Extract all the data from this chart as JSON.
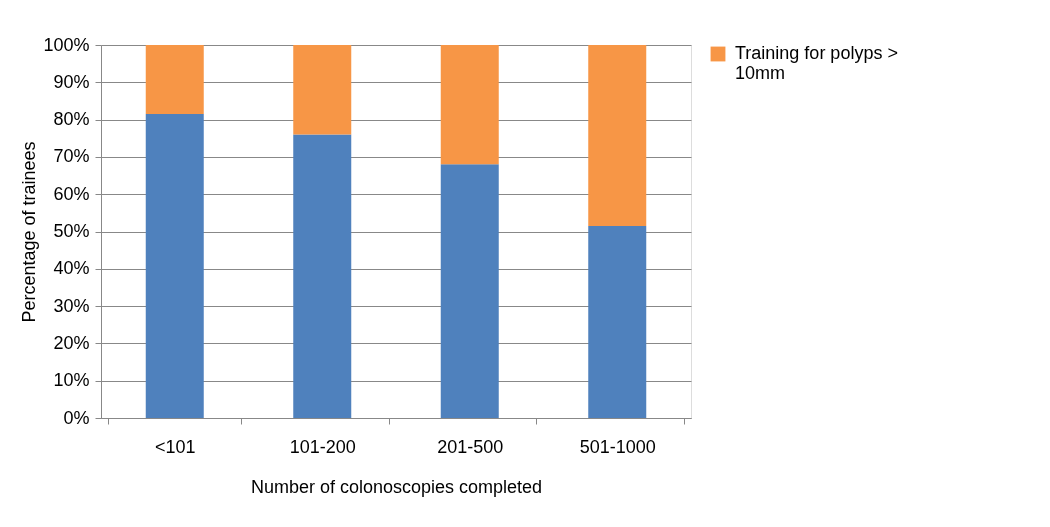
{
  "chart_data": {
    "type": "bar",
    "stacked": true,
    "xlabel": "Number of colonoscopies completed",
    "ylabel": "Percentage of trainees",
    "categories": [
      "<101",
      "101-200",
      "201-500",
      "501-1000"
    ],
    "series": [
      {
        "color": "#4f81bd",
        "values": [
          81.5,
          76,
          68,
          51.5
        ]
      },
      {
        "name": "Training for polyps > 10mm",
        "color": "#f79646",
        "values": [
          18.5,
          24,
          32,
          48.5
        ]
      }
    ],
    "ylim": [
      0,
      100
    ],
    "yticks": [
      {
        "value": 0,
        "label": "0%"
      },
      {
        "value": 10,
        "label": "10%"
      },
      {
        "value": 20,
        "label": "20%"
      },
      {
        "value": 30,
        "label": "30%"
      },
      {
        "value": 40,
        "label": "40%"
      },
      {
        "value": 50,
        "label": "50%"
      },
      {
        "value": 60,
        "label": "60%"
      },
      {
        "value": 70,
        "label": "70%"
      },
      {
        "value": 80,
        "label": "80%"
      },
      {
        "value": 90,
        "label": "90%"
      },
      {
        "value": 100,
        "label": "100%"
      }
    ],
    "grid": "y",
    "legend": "right"
  }
}
